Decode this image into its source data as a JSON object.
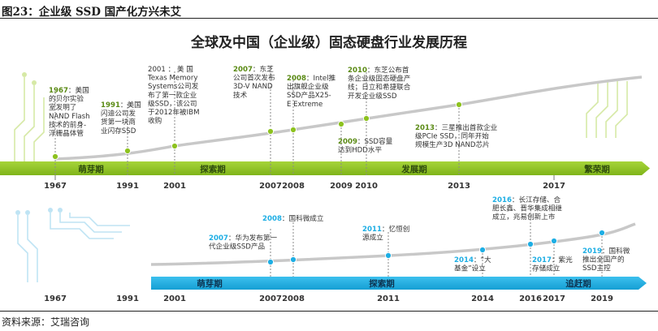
{
  "caption": "图23：企业级 SSD 国产化方兴未艾",
  "source": "资料来源：艾瑞咨询",
  "diagram_title": "全球及中国（企业级）固态硬盘行业发展历程",
  "colors": {
    "green": "#8dc21f",
    "green_dark": "#5a8a14",
    "blue": "#1eaee4",
    "navy": "#1a3f6b",
    "year": "#333333",
    "curve": "#c8c8c8"
  },
  "global": {
    "stages": [
      {
        "label": "萌芽期",
        "from": 1967,
        "to": 1991
      },
      {
        "label": "探索期",
        "from": 1991,
        "to": 2008
      },
      {
        "label": "发展期",
        "from": 2008,
        "to": 2017
      },
      {
        "label": "繁荣期",
        "from": 2017,
        "to": 2019
      }
    ],
    "years": [
      "1967",
      "1991",
      "2001",
      "2007",
      "2008",
      "2009",
      "2010",
      "2013",
      "2017"
    ],
    "events": [
      {
        "year": "1967",
        "lines": [
          "1967：美国",
          "的贝尔实验",
          "室发明了",
          "NAND Flash",
          "技术的前身-",
          "浮栅晶体管"
        ]
      },
      {
        "year": "1991",
        "lines": [
          "1991：美国",
          "闪迪公司发",
          "货第一块商",
          "业闪存SSD"
        ]
      },
      {
        "year": "2001",
        "lines": [
          "2001 ： 美 国",
          "Texas  Memory",
          "Systems公司发",
          "布了第一款企业",
          "级SSD，该公司",
          "于2012年被IBM",
          "收购"
        ]
      },
      {
        "year": "2007",
        "lines": [
          "2007：东芝",
          "公司首次发布",
          "3D-V   NAND",
          "技术"
        ]
      },
      {
        "year": "2008",
        "lines": [
          "2008：Intel推",
          "出旗舰企业级",
          "SSD产品X25-",
          "E Extreme"
        ]
      },
      {
        "year": "2009",
        "lines": [
          "2009：SSD容量",
          "达到HDD水平"
        ]
      },
      {
        "year": "2010",
        "lines": [
          "2010：东芝公布首",
          "条企业级固态硬盘产",
          "线；日立和希捷联合",
          "开发企业级SSD"
        ]
      },
      {
        "year": "2013",
        "lines": [
          "2013：三星推出首款企业",
          "级PCIe  SSD，同年开始",
          "规模生产3D NAND芯片"
        ]
      }
    ]
  },
  "china": {
    "stages": [
      {
        "label": "萌芽期",
        "from": 2001,
        "to": 2008
      },
      {
        "label": "探索期",
        "from": 2008,
        "to": 2016
      },
      {
        "label": "追赶期",
        "from": 2016,
        "to": 2019
      }
    ],
    "years": [
      "1967",
      "1991",
      "2001",
      "2007",
      "2008",
      "2011",
      "2014",
      "2016",
      "2017",
      "2019"
    ],
    "events": [
      {
        "year": "2007",
        "lines": [
          "2007：华为发布第一",
          "代企业级SSD产品"
        ]
      },
      {
        "year": "2008",
        "lines": [
          "2008：国科微成立"
        ]
      },
      {
        "year": "2011",
        "lines": [
          "2011：忆恒创",
          "源成立"
        ]
      },
      {
        "year": "2014",
        "lines": [
          "2014：“大",
          "基金”设立"
        ]
      },
      {
        "year": "2016",
        "lines": [
          "2016：长江存储、合",
          "肥长鑫、晋华集成相继",
          "成立，兆易创新上市"
        ]
      },
      {
        "year": "2017",
        "lines": [
          "2017：紫光",
          "存储成立"
        ]
      },
      {
        "year": "2019",
        "lines": [
          "2019：国科微",
          "推出全国产的",
          "SSD主控"
        ]
      }
    ]
  }
}
